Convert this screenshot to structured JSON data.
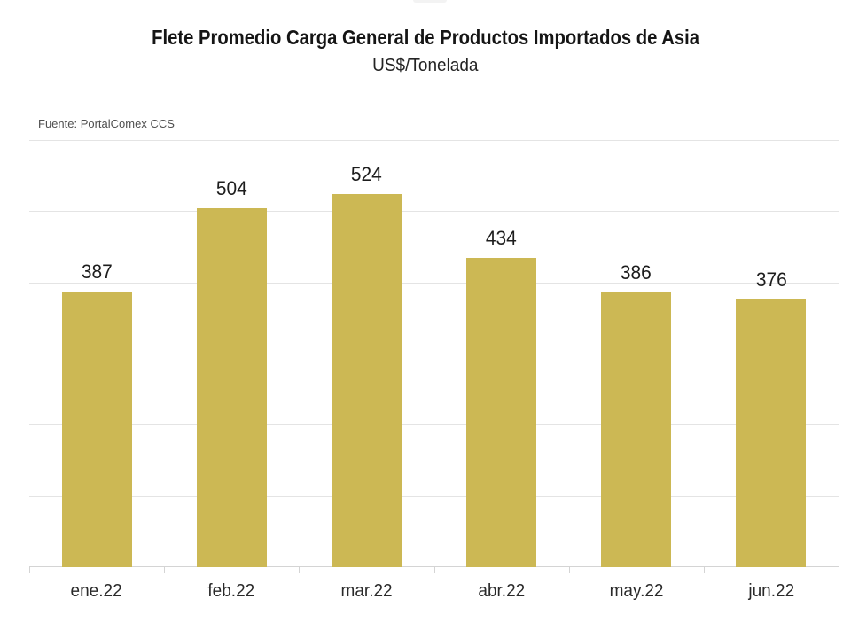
{
  "header": {
    "title": "Flete Promedio Carga General de Productos Importados de Asia",
    "subtitle": "US$/Tonelada",
    "source": "Fuente: PortalComex CCS"
  },
  "chart_data": {
    "type": "bar",
    "title": "Flete Promedio Carga General de Productos Importados de Asia",
    "subtitle": "US$/Tonelada",
    "source": "Fuente: PortalComex CCS",
    "categories": [
      "ene.22",
      "feb.22",
      "mar.22",
      "abr.22",
      "may.22",
      "jun.22"
    ],
    "values": [
      387,
      504,
      524,
      434,
      386,
      376
    ],
    "xlabel": "",
    "ylabel": "US$/Tonelada",
    "ylim": [
      0,
      600
    ],
    "gridline_step": 100,
    "grid": "horizontal",
    "legend": "none",
    "data_labels_shown": true,
    "y_axis_labels_shown": false
  },
  "colors": {
    "bar": "#CCB854",
    "gridline": "#E4E4E4",
    "axis_line": "#D4D4D4",
    "title_text": "#151515",
    "source_text": "#4F4F4F",
    "value_label_text": "#1D1D1D",
    "x_label_text": "#2A2A2A",
    "background": "#FFFFFF"
  }
}
